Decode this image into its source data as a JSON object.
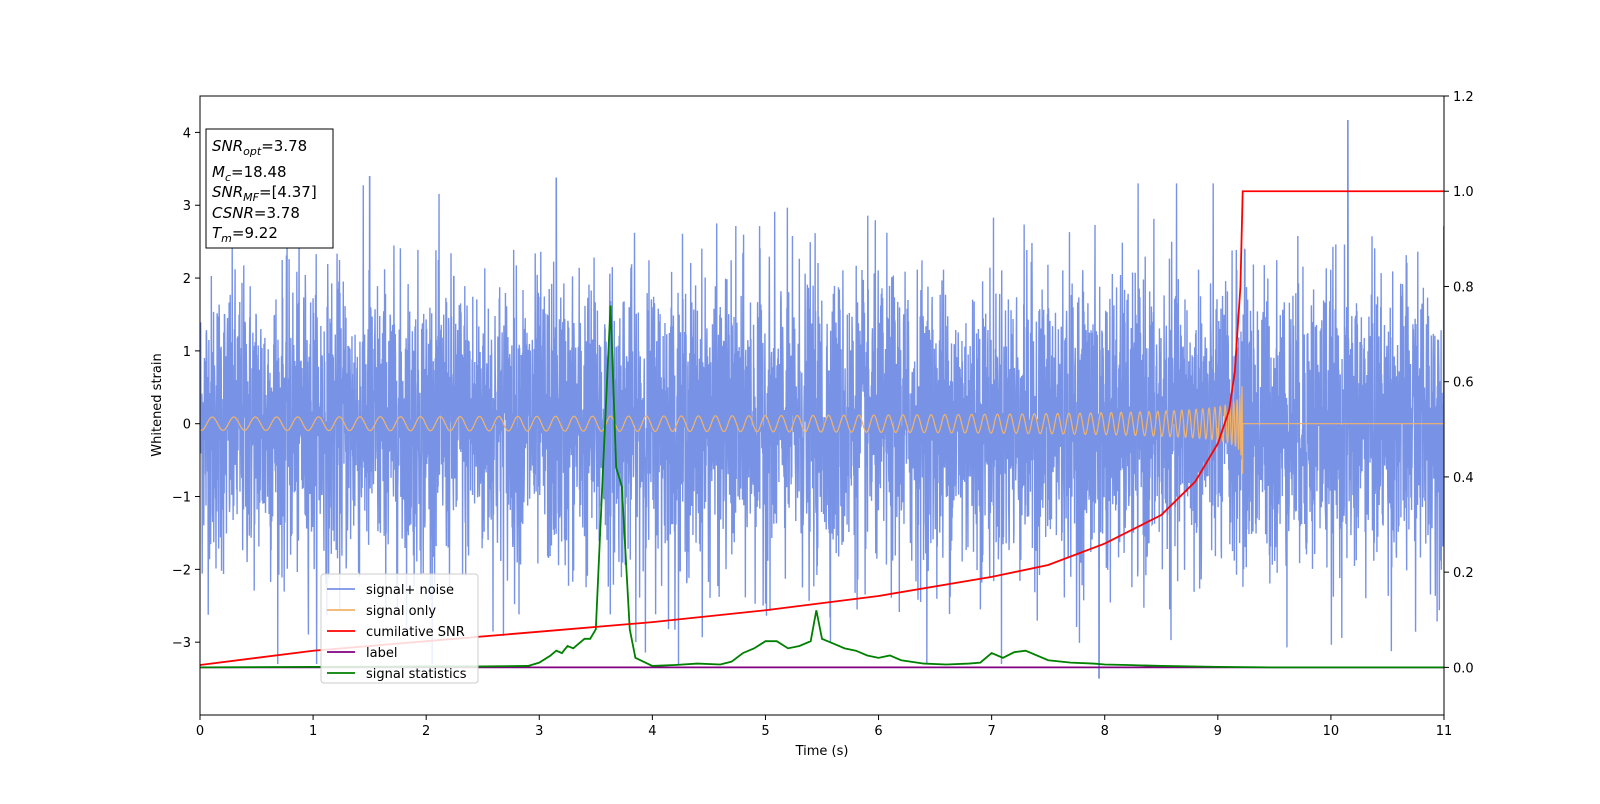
{
  "chart_data": {
    "type": "line",
    "xlabel": "Time (s)",
    "ylabel": "Whitened strain",
    "xlim": [
      0,
      11
    ],
    "ylim_left": [
      -4.0,
      4.5
    ],
    "ylim_right": [
      -0.1,
      1.2
    ],
    "x_ticks": [
      "0",
      "1",
      "2",
      "3",
      "4",
      "5",
      "6",
      "7",
      "8",
      "9",
      "10",
      "11"
    ],
    "y_left_ticks": [
      "4",
      "3",
      "2",
      "1",
      "0",
      "−1",
      "−2",
      "−3"
    ],
    "y_left_tick_values": [
      4,
      3,
      2,
      1,
      0,
      -1,
      -2,
      -3
    ],
    "y_right_ticks": [
      "1.2",
      "1.0",
      "0.8",
      "0.6",
      "0.4",
      "0.2",
      "0.0"
    ],
    "y_right_tick_values": [
      1.2,
      1.0,
      0.8,
      0.6,
      0.4,
      0.2,
      0.0
    ],
    "grid": false,
    "legend_placement": "lower-left",
    "info_box": {
      "lines": [
        {
          "base": "SNR",
          "sub": "opt",
          "value": "=3.78"
        },
        {
          "base": "M",
          "sub": "c",
          "value": "=18.48"
        },
        {
          "base": "SNR",
          "sub": "MF",
          "value": "=[4.37]"
        },
        {
          "base": "CSNR",
          "sub": "",
          "value": "=3.78"
        },
        {
          "base": "T",
          "sub": "m",
          "value": "=9.22"
        }
      ]
    },
    "series": [
      {
        "name": "signal+ noise",
        "axis": "left",
        "color": "#7893e6",
        "kind": "noise",
        "note_values": "white-noise-like fluctuation roughly between -3.5 and 4.2 over 0–11 s",
        "peaks": [
          [
            10.15,
            4.17
          ],
          [
            7.95,
            -3.5
          ],
          [
            1.5,
            3.4
          ],
          [
            3.15,
            3.38
          ]
        ]
      },
      {
        "name": "signal only",
        "axis": "left",
        "color": "#f2b36a",
        "kind": "chirp",
        "merger_time": 9.22,
        "peak_amplitude": 0.75
      },
      {
        "name": "cumilative SNR",
        "axis": "right",
        "color": "#ff0000",
        "x": [
          0,
          1,
          2,
          3,
          4,
          5,
          6,
          7,
          7.5,
          8,
          8.5,
          8.8,
          9.0,
          9.1,
          9.15,
          9.2,
          9.22,
          11
        ],
        "values": [
          0.005,
          0.035,
          0.055,
          0.075,
          0.095,
          0.12,
          0.15,
          0.19,
          0.215,
          0.26,
          0.32,
          0.39,
          0.47,
          0.54,
          0.62,
          0.8,
          1.0,
          1.0
        ]
      },
      {
        "name": "label",
        "axis": "right",
        "color": "#800080",
        "x": [
          0,
          11
        ],
        "values": [
          0,
          0
        ]
      },
      {
        "name": "signal statistics",
        "axis": "right",
        "color": "#008000",
        "x": [
          0,
          1,
          2,
          2.5,
          2.9,
          3.0,
          3.1,
          3.15,
          3.2,
          3.25,
          3.3,
          3.4,
          3.45,
          3.5,
          3.57,
          3.63,
          3.68,
          3.73,
          3.8,
          3.85,
          4.0,
          4.2,
          4.4,
          4.6,
          4.7,
          4.8,
          4.9,
          5.0,
          5.1,
          5.2,
          5.3,
          5.4,
          5.45,
          5.5,
          5.6,
          5.7,
          5.8,
          5.9,
          6.0,
          6.1,
          6.2,
          6.4,
          6.6,
          6.8,
          6.9,
          7.0,
          7.1,
          7.2,
          7.3,
          7.5,
          7.7,
          7.9,
          8.0,
          8.2,
          8.5,
          9.0,
          9.5,
          11
        ],
        "values": [
          0,
          0.001,
          0.002,
          0.002,
          0.003,
          0.01,
          0.025,
          0.035,
          0.03,
          0.045,
          0.04,
          0.06,
          0.06,
          0.08,
          0.45,
          0.76,
          0.42,
          0.38,
          0.08,
          0.02,
          0.003,
          0.005,
          0.008,
          0.006,
          0.012,
          0.03,
          0.04,
          0.055,
          0.055,
          0.04,
          0.045,
          0.055,
          0.12,
          0.06,
          0.05,
          0.04,
          0.035,
          0.025,
          0.02,
          0.025,
          0.015,
          0.008,
          0.006,
          0.008,
          0.01,
          0.03,
          0.02,
          0.032,
          0.035,
          0.015,
          0.01,
          0.008,
          0.006,
          0.005,
          0.003,
          0.001,
          0.0,
          0.0
        ]
      }
    ]
  }
}
